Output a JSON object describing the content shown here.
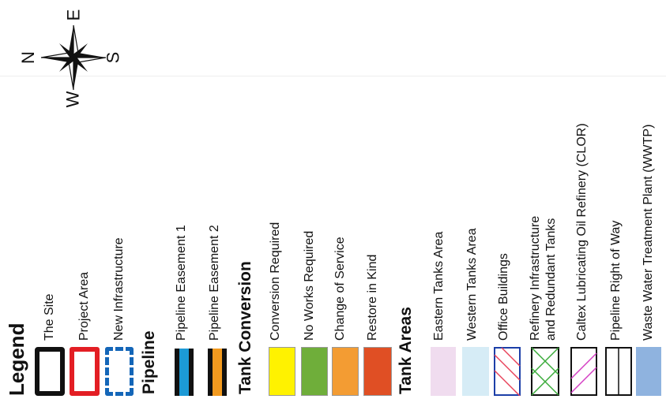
{
  "compass": {
    "north": "N",
    "east": "E",
    "south": "S",
    "west": "W"
  },
  "legend": {
    "title": "Legend",
    "site": {
      "items": [
        {
          "label": "The Site",
          "color": "#111111"
        },
        {
          "label": "Project Area",
          "color": "#e31e24"
        },
        {
          "label": "New Infrastructure",
          "color": "#1466b8"
        }
      ]
    },
    "pipeline": {
      "title": "Pipeline",
      "items": [
        {
          "label": "Pipeline Easement 1",
          "color": "#1c9ad6"
        },
        {
          "label": "Pipeline Easement 2",
          "color": "#f29a1f"
        }
      ]
    },
    "tank_conversion": {
      "title": "Tank Conversion",
      "items": [
        {
          "label": "Conversion Required",
          "color": "#fff200"
        },
        {
          "label": "No Works Required",
          "color": "#6fae3a"
        },
        {
          "label": "Change of Service",
          "color": "#f39c33"
        },
        {
          "label": "Restore in Kind",
          "color": "#e04f24"
        }
      ]
    },
    "tank_areas": {
      "title": "Tank Areas",
      "items": [
        {
          "label": "Eastern Tanks Area",
          "color": "#f0dcef"
        },
        {
          "label": "Western Tanks Area",
          "color": "#d6ecf6"
        },
        {
          "label": "Office Buildings",
          "color": "#e8425a"
        },
        {
          "label": "Refinery Infrastructure",
          "label2": "and Redundant Tanks",
          "color": "#3aab3a"
        },
        {
          "label": "Caltex Lubricating Oil Refinery (CLOR)",
          "color": "#d43fc4"
        },
        {
          "label": "Pipeline Right of Way",
          "color": "#111111"
        },
        {
          "label": "Waste Water Treatment Plant (WWTP)",
          "color": "#8fb3df"
        }
      ]
    }
  }
}
